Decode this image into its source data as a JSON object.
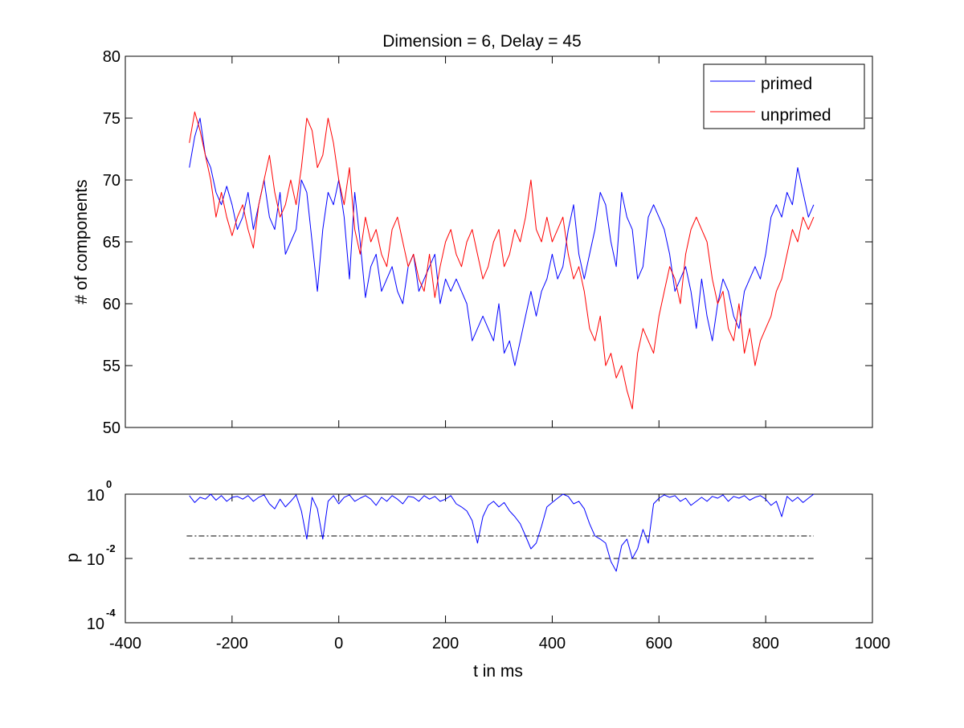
{
  "chart_data": [
    {
      "type": "line",
      "title": "Dimension  = 6, Delay = 45",
      "xlabel": "",
      "ylabel": "# of components",
      "xlim": [
        -400,
        1000
      ],
      "ylim": [
        50,
        80
      ],
      "x_ticks": [
        -400,
        -200,
        0,
        200,
        400,
        600,
        800,
        1000
      ],
      "y_ticks": [
        50,
        55,
        60,
        65,
        70,
        75,
        80
      ],
      "y_tick_labels": [
        "50",
        "55",
        "60",
        "65",
        "70",
        "75",
        "80"
      ],
      "legend_position": "top-right",
      "grid": false,
      "series": [
        {
          "name": "primed",
          "color": "#0000ff",
          "x": [
            -280,
            -270,
            -260,
            -250,
            -240,
            -230,
            -220,
            -210,
            -200,
            -190,
            -180,
            -170,
            -160,
            -150,
            -140,
            -130,
            -120,
            -110,
            -100,
            -90,
            -80,
            -70,
            -60,
            -50,
            -40,
            -30,
            -20,
            -10,
            0,
            10,
            20,
            30,
            40,
            50,
            60,
            70,
            80,
            90,
            100,
            110,
            120,
            130,
            140,
            150,
            160,
            170,
            180,
            190,
            200,
            210,
            220,
            230,
            240,
            250,
            260,
            270,
            280,
            290,
            300,
            310,
            320,
            330,
            340,
            350,
            360,
            370,
            380,
            390,
            400,
            410,
            420,
            430,
            440,
            450,
            460,
            470,
            480,
            490,
            500,
            510,
            520,
            530,
            540,
            550,
            560,
            570,
            580,
            590,
            600,
            610,
            620,
            630,
            640,
            650,
            660,
            670,
            680,
            690,
            700,
            710,
            720,
            730,
            740,
            750,
            760,
            770,
            780,
            790,
            800,
            810,
            820,
            830,
            840,
            850,
            860,
            870,
            880,
            890
          ],
          "values": [
            71,
            73.5,
            75,
            72,
            71,
            69,
            68,
            69.5,
            68,
            66,
            67,
            69,
            66,
            68,
            70,
            67,
            66,
            69,
            64,
            65,
            66,
            70,
            69,
            65,
            61,
            66,
            69,
            68,
            70,
            67,
            62,
            69,
            65,
            60.5,
            63,
            64,
            61,
            62,
            63,
            61,
            60,
            63,
            64,
            61,
            62,
            63,
            64,
            60,
            62,
            61,
            62,
            61,
            60,
            57,
            58,
            59,
            58,
            57,
            60,
            56,
            57,
            55,
            57,
            59,
            61,
            59,
            61,
            62,
            64,
            62,
            63,
            66,
            68,
            64,
            62,
            64,
            66,
            69,
            68,
            65,
            63,
            69,
            67,
            66,
            62,
            63,
            67,
            68,
            67,
            66,
            64,
            61,
            62,
            63,
            61,
            58,
            62,
            59,
            57,
            60,
            62,
            61,
            59,
            58,
            61,
            62,
            63,
            62,
            64,
            67,
            68,
            67,
            69,
            68,
            71,
            69,
            67,
            68
          ]
        },
        {
          "name": "unprimed",
          "color": "#ff0000",
          "x": [
            -280,
            -270,
            -260,
            -250,
            -240,
            -230,
            -220,
            -210,
            -200,
            -190,
            -180,
            -170,
            -160,
            -150,
            -140,
            -130,
            -120,
            -110,
            -100,
            -90,
            -80,
            -70,
            -60,
            -50,
            -40,
            -30,
            -20,
            -10,
            0,
            10,
            20,
            30,
            40,
            50,
            60,
            70,
            80,
            90,
            100,
            110,
            120,
            130,
            140,
            150,
            160,
            170,
            180,
            190,
            200,
            210,
            220,
            230,
            240,
            250,
            260,
            270,
            280,
            290,
            300,
            310,
            320,
            330,
            340,
            350,
            360,
            370,
            380,
            390,
            400,
            410,
            420,
            430,
            440,
            450,
            460,
            470,
            480,
            490,
            500,
            510,
            520,
            530,
            540,
            550,
            560,
            570,
            580,
            590,
            600,
            610,
            620,
            630,
            640,
            650,
            660,
            670,
            680,
            690,
            700,
            710,
            720,
            730,
            740,
            750,
            760,
            770,
            780,
            790,
            800,
            810,
            820,
            830,
            840,
            850,
            860,
            870,
            880,
            890
          ],
          "values": [
            73,
            75.5,
            74,
            72,
            70,
            67,
            69,
            67,
            65.5,
            67,
            68,
            66,
            64.5,
            68,
            70,
            72,
            69,
            67,
            68,
            70,
            68,
            71,
            75,
            74,
            71,
            72,
            75,
            73,
            70,
            68,
            71,
            66,
            64,
            67,
            65,
            66,
            64,
            63,
            66,
            67,
            65,
            63,
            64,
            62,
            61,
            64,
            60.5,
            63,
            65,
            66,
            64,
            63,
            65,
            66,
            64,
            62,
            63,
            65,
            66,
            63,
            64,
            66,
            65,
            67,
            70,
            66,
            65,
            67,
            65,
            66,
            67,
            64,
            62,
            63,
            61,
            58,
            57,
            59,
            55,
            56,
            54,
            55,
            53,
            51.5,
            56,
            58,
            57,
            56,
            59,
            61,
            63,
            62,
            60,
            64,
            66,
            67,
            66,
            65,
            62,
            60,
            61,
            58,
            57,
            60,
            56,
            58,
            55,
            57,
            58,
            59,
            61,
            62,
            64,
            66,
            65,
            67,
            66,
            67
          ]
        }
      ]
    },
    {
      "type": "line",
      "title": "",
      "xlabel": "t in ms",
      "ylabel": "p",
      "xlim": [
        -400,
        1000
      ],
      "ylim": [
        0.0001,
        1
      ],
      "y_scale": "log",
      "x_ticks": [
        -400,
        -200,
        0,
        200,
        400,
        600,
        800,
        1000
      ],
      "x_tick_labels": [
        "-400",
        "-200",
        "0",
        "200",
        "400",
        "600",
        "800",
        "1000"
      ],
      "y_ticks": [
        1,
        0.01,
        0.0001
      ],
      "y_tick_labels": [
        {
          "base": "10",
          "exp": "0"
        },
        {
          "base": "10",
          "exp": "-2"
        },
        {
          "base": "10",
          "exp": "-4"
        }
      ],
      "grid": false,
      "series": [
        {
          "color": "#0000ff",
          "x": [
            -280,
            -270,
            -260,
            -250,
            -240,
            -230,
            -220,
            -210,
            -200,
            -190,
            -180,
            -170,
            -160,
            -150,
            -140,
            -130,
            -120,
            -110,
            -100,
            -90,
            -80,
            -70,
            -60,
            -50,
            -40,
            -30,
            -20,
            -10,
            0,
            10,
            20,
            30,
            40,
            50,
            60,
            70,
            80,
            90,
            100,
            110,
            120,
            130,
            140,
            150,
            160,
            170,
            180,
            190,
            200,
            210,
            220,
            230,
            240,
            250,
            260,
            270,
            280,
            290,
            300,
            310,
            320,
            330,
            340,
            350,
            360,
            370,
            380,
            390,
            400,
            410,
            420,
            430,
            440,
            450,
            460,
            470,
            480,
            490,
            500,
            510,
            520,
            530,
            540,
            550,
            560,
            570,
            580,
            590,
            600,
            610,
            620,
            630,
            640,
            650,
            660,
            670,
            680,
            690,
            700,
            710,
            720,
            730,
            740,
            750,
            760,
            770,
            780,
            790,
            800,
            810,
            820,
            830,
            840,
            850,
            860,
            870,
            880,
            890
          ],
          "values": [
            0.9,
            0.55,
            0.8,
            0.7,
            1.0,
            0.65,
            0.9,
            0.6,
            0.8,
            0.85,
            0.7,
            0.9,
            0.6,
            0.8,
            0.95,
            0.5,
            0.35,
            0.7,
            0.4,
            0.6,
            0.95,
            0.3,
            0.04,
            0.8,
            0.35,
            0.04,
            0.6,
            0.9,
            0.5,
            0.8,
            0.95,
            0.6,
            0.75,
            0.9,
            0.7,
            0.45,
            0.8,
            0.6,
            0.9,
            0.7,
            0.5,
            0.85,
            0.8,
            0.6,
            0.9,
            0.7,
            0.85,
            0.6,
            0.7,
            0.9,
            0.5,
            0.4,
            0.3,
            0.15,
            0.03,
            0.2,
            0.45,
            0.6,
            0.4,
            0.55,
            0.3,
            0.2,
            0.12,
            0.05,
            0.02,
            0.03,
            0.1,
            0.4,
            0.55,
            0.75,
            1.0,
            0.85,
            0.5,
            0.6,
            0.35,
            0.12,
            0.05,
            0.04,
            0.03,
            0.008,
            0.004,
            0.025,
            0.04,
            0.01,
            0.02,
            0.08,
            0.03,
            0.5,
            0.75,
            0.95,
            0.8,
            0.9,
            0.6,
            0.75,
            0.45,
            0.6,
            0.8,
            0.6,
            0.85,
            0.75,
            0.95,
            0.6,
            0.85,
            0.75,
            0.9,
            0.65,
            0.8,
            0.9,
            0.7,
            0.45,
            0.6,
            0.2,
            0.85,
            0.6,
            0.8,
            0.55,
            0.75,
            1.0
          ]
        }
      ],
      "reference_lines": [
        {
          "style": "dash-dot",
          "value": 0.05,
          "x_range": [
            -285,
            890
          ]
        },
        {
          "style": "dashed",
          "value": 0.01,
          "x_range": [
            -280,
            890
          ]
        }
      ]
    }
  ]
}
